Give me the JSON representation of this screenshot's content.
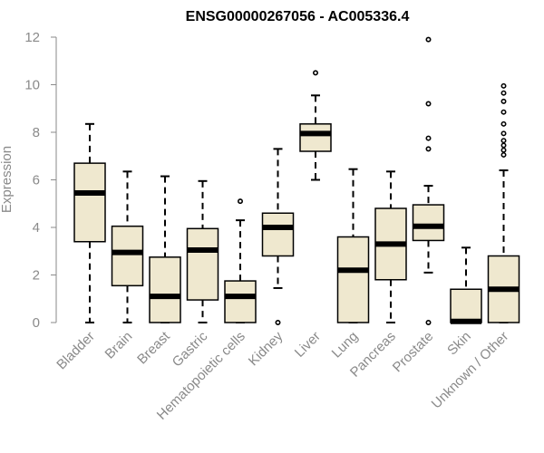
{
  "chart_data": {
    "type": "boxplot",
    "title": "ENSG00000267056 - AC005336.4",
    "ylabel": "Expression",
    "ylim": [
      0,
      12
    ],
    "yticks": [
      0,
      2,
      4,
      6,
      8,
      10,
      12
    ],
    "colors": {
      "box_fill": "#efe8cf",
      "box_stroke": "#000000",
      "axis": "#8a8a8a"
    },
    "categories": [
      "Bladder",
      "Brain",
      "Breast",
      "Gastric",
      "Hematopoietic cells",
      "Kidney",
      "Liver",
      "Lung",
      "Pancreas",
      "Prostate",
      "Skin",
      "Unknown / Other"
    ],
    "boxes": [
      {
        "whisker_low": 0,
        "q1": 3.4,
        "median": 5.45,
        "q3": 6.7,
        "whisker_high": 8.35,
        "outliers": []
      },
      {
        "whisker_low": 0,
        "q1": 1.55,
        "median": 2.95,
        "q3": 4.05,
        "whisker_high": 6.35,
        "outliers": []
      },
      {
        "whisker_low": 0,
        "q1": 0,
        "median": 1.1,
        "q3": 2.75,
        "whisker_high": 6.15,
        "outliers": []
      },
      {
        "whisker_low": 0,
        "q1": 0.95,
        "median": 3.05,
        "q3": 3.95,
        "whisker_high": 5.95,
        "outliers": []
      },
      {
        "whisker_low": 0,
        "q1": 0,
        "median": 1.1,
        "q3": 1.75,
        "whisker_high": 4.3,
        "outliers": [
          5.1
        ]
      },
      {
        "whisker_low": 1.45,
        "q1": 2.8,
        "median": 4.0,
        "q3": 4.6,
        "whisker_high": 7.3,
        "outliers": [
          0
        ]
      },
      {
        "whisker_low": 6.0,
        "q1": 7.2,
        "median": 7.95,
        "q3": 8.35,
        "whisker_high": 9.55,
        "outliers": [
          10.5
        ]
      },
      {
        "whisker_low": 0,
        "q1": 0,
        "median": 2.2,
        "q3": 3.6,
        "whisker_high": 6.45,
        "outliers": []
      },
      {
        "whisker_low": 0,
        "q1": 1.8,
        "median": 3.3,
        "q3": 4.8,
        "whisker_high": 6.35,
        "outliers": []
      },
      {
        "whisker_low": 2.1,
        "q1": 3.45,
        "median": 4.05,
        "q3": 4.95,
        "whisker_high": 5.75,
        "outliers": [
          0,
          7.3,
          7.75,
          9.2,
          11.9
        ]
      },
      {
        "whisker_low": 0,
        "q1": 0,
        "median": 0.05,
        "q3": 1.4,
        "whisker_high": 3.15,
        "outliers": []
      },
      {
        "whisker_low": 0,
        "q1": 0,
        "median": 1.4,
        "q3": 2.8,
        "whisker_high": 6.4,
        "outliers": [
          7.05,
          7.25,
          7.45,
          7.65,
          7.95,
          8.35,
          8.85,
          9.3,
          9.65,
          9.95
        ]
      }
    ]
  }
}
